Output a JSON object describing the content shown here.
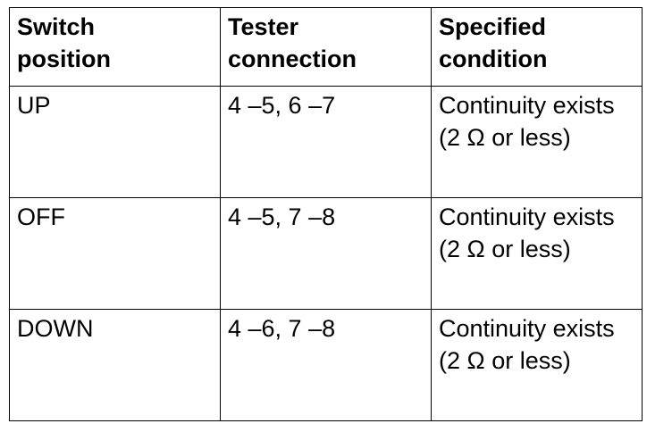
{
  "table": {
    "header": [
      "Switch position",
      "Tester connection",
      "Specified condition"
    ],
    "rows": [
      [
        "UP",
        "4 –5, 6 –7",
        "Continuity exists (2 Ω or less)"
      ],
      [
        "OFF",
        "4 –5, 7 –8",
        "Continuity exists (2 Ω or less)"
      ],
      [
        "DOWN",
        "4 –6, 7 –8",
        "Continuity exists (2 Ω or less)"
      ]
    ]
  }
}
